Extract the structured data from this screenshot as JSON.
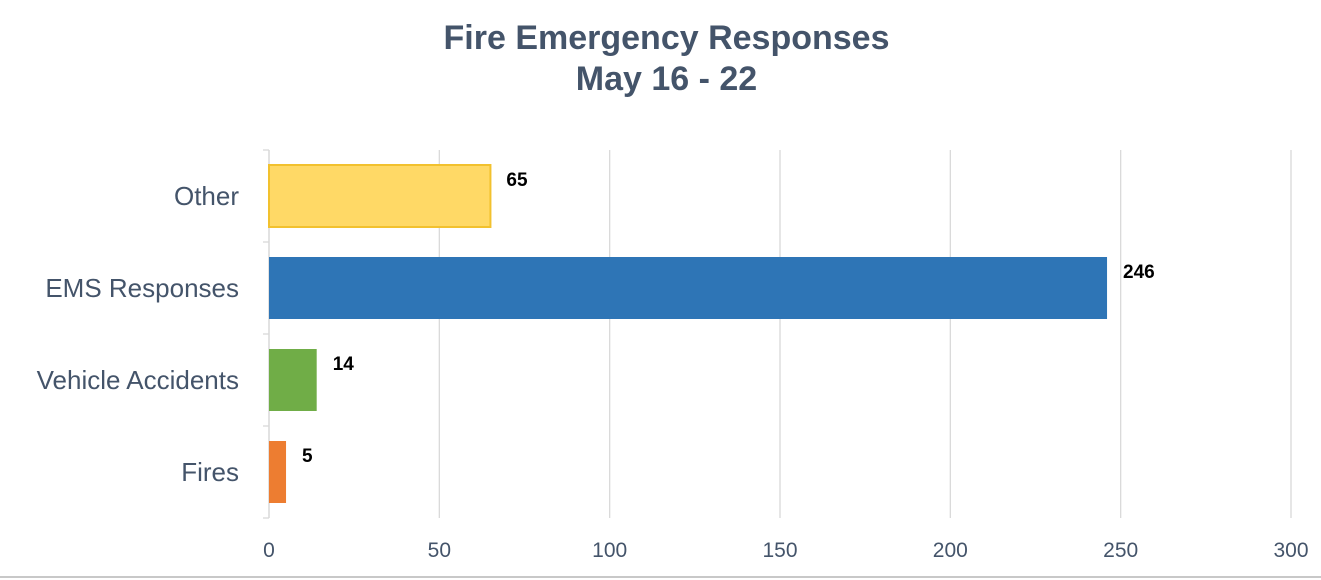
{
  "chart_data": {
    "type": "bar",
    "orientation": "horizontal",
    "title": "Fire Emergency Responses",
    "subtitle": "May 16 - 22",
    "categories": [
      "Other",
      "EMS Responses",
      "Vehicle Accidents",
      "Fires"
    ],
    "values": [
      65,
      246,
      14,
      5
    ],
    "data_labels": [
      "65",
      "246",
      "14",
      "5"
    ],
    "colors": [
      "#ffd966",
      "#2e75b6",
      "#70ad47",
      "#ed7d31"
    ],
    "xlim": [
      0,
      300
    ],
    "xticks": [
      0,
      50,
      100,
      150,
      200,
      250,
      300
    ],
    "xtick_labels": [
      "0",
      "50",
      "100",
      "150",
      "200",
      "250",
      "300"
    ],
    "grid": "vertical",
    "legend": "none",
    "xlabel": "",
    "ylabel": ""
  }
}
